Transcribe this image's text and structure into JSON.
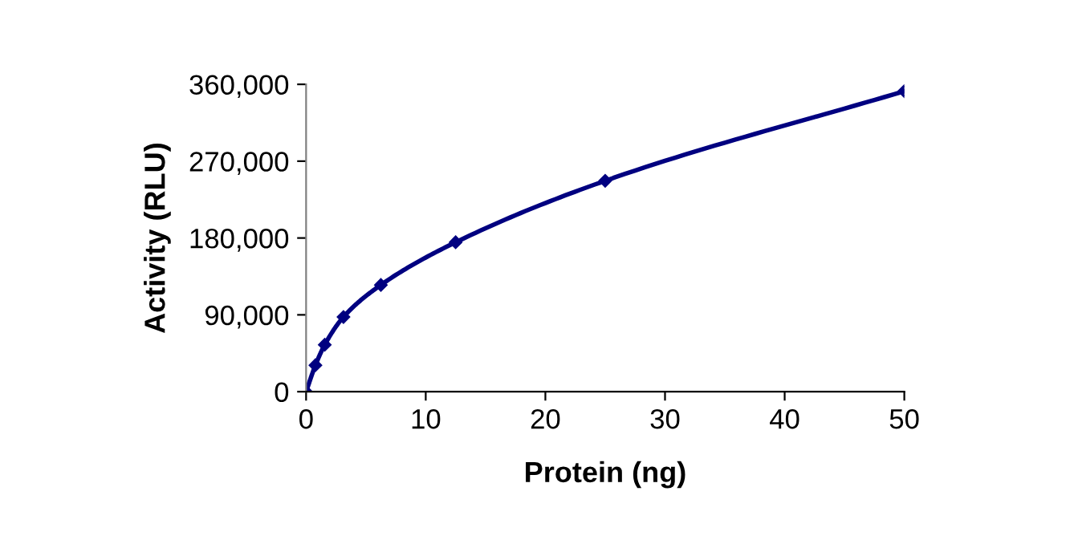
{
  "chart_data": {
    "type": "line",
    "xlabel": "Protein (ng)",
    "ylabel": "Activity (RLU)",
    "series": [
      {
        "color": "#000080",
        "x": [
          0,
          0.78,
          1.56,
          3.125,
          6.25,
          12.5,
          25,
          50
        ],
        "values": [
          0,
          31000,
          55000,
          87500,
          125000,
          175000,
          247000,
          352000
        ]
      }
    ],
    "xlim": [
      0,
      50
    ],
    "xticks": [
      0,
      10,
      20,
      30,
      40,
      50
    ],
    "ylim": [
      0,
      360000
    ],
    "yticks": [
      {
        "value": 0,
        "label": "0"
      },
      {
        "value": 90000,
        "label": "90,000"
      },
      {
        "value": 180000,
        "label": "180,000"
      },
      {
        "value": 270000,
        "label": "270,000"
      },
      {
        "value": 360000,
        "label": "360,000"
      }
    ],
    "grid": false,
    "legend": false,
    "marker": "diamond",
    "line_style": "solid"
  }
}
